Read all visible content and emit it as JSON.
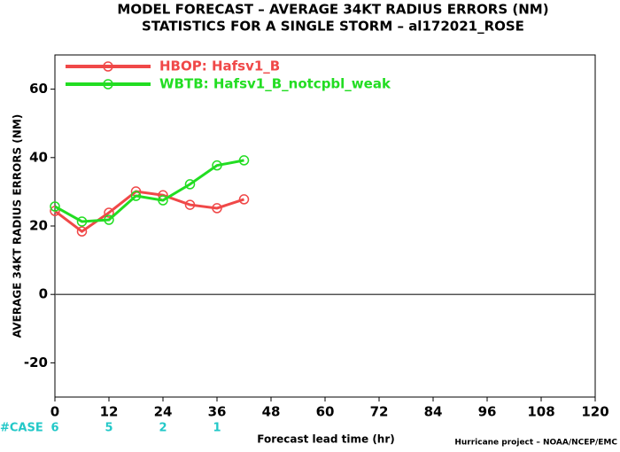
{
  "chart_data": {
    "type": "line",
    "title": "MODEL FORECAST – AVERAGE 34KT RADIUS ERRORS (NM)",
    "subtitle": "STATISTICS FOR A SINGLE STORM – al172021_ROSE",
    "xlabel": "Forecast lead time (hr)",
    "ylabel": "AVERAGE 34KT RADIUS ERRORS (NM)",
    "footer": "Hurricane project – NOAA/NCEP/EMC",
    "x": [
      0,
      6,
      12,
      18,
      24,
      30,
      36,
      42
    ],
    "series": [
      {
        "name": "HBOP: Hafsv1_B",
        "color": "#f04848",
        "values": [
          24.4,
          18.4,
          23.9,
          30.1,
          29,
          26.2,
          25.2,
          27.8
        ]
      },
      {
        "name": "WBTB: Hafsv1_B_notcpbl_weak",
        "color": "#22dd22",
        "values": [
          25.7,
          21.3,
          21.8,
          28.8,
          27.5,
          32.2,
          37.7,
          39.2
        ]
      }
    ],
    "xlim": [
      0,
      120
    ],
    "xticks": [
      0,
      12,
      24,
      36,
      48,
      60,
      72,
      84,
      96,
      108,
      120
    ],
    "ylim": [
      -30,
      70
    ],
    "yticks": [
      -20,
      0,
      20,
      40,
      60
    ],
    "zero_line": true,
    "legend": "top-left",
    "case_label": "#CASE",
    "case_color": "#22c8c8",
    "cases": [
      {
        "x": 0,
        "count": 6
      },
      {
        "x": 12,
        "count": 5
      },
      {
        "x": 24,
        "count": 2
      },
      {
        "x": 36,
        "count": 1
      }
    ]
  }
}
